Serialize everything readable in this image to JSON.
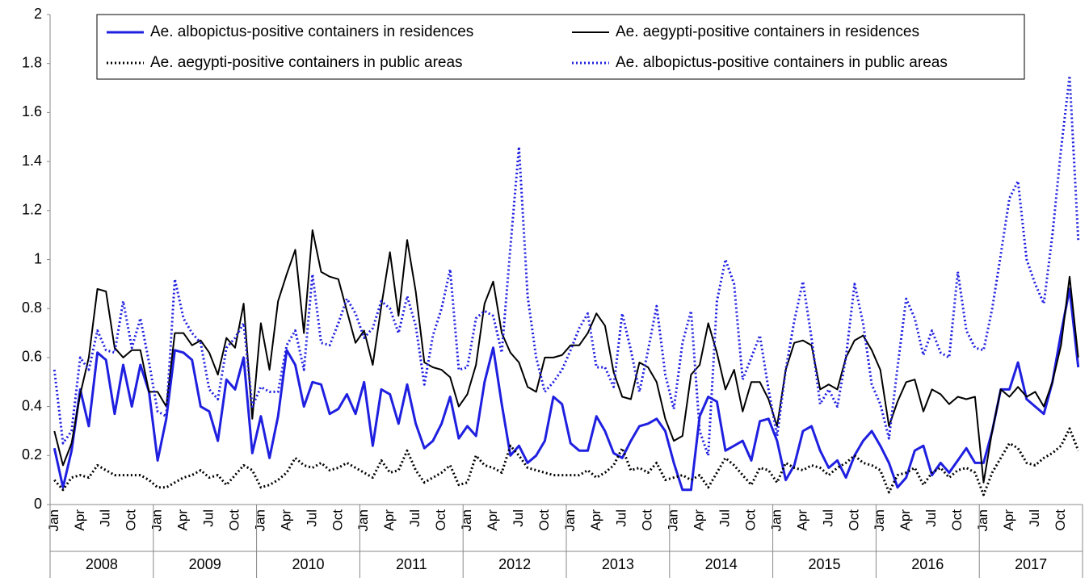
{
  "chart_data": {
    "type": "line",
    "categories": [
      "Jan",
      null,
      null,
      "Apr",
      null,
      null,
      "Jul",
      null,
      null,
      "Oct",
      null,
      null,
      "Jan",
      null,
      null,
      "Apr",
      null,
      null,
      "Jul",
      null,
      null,
      "Oct",
      null,
      null,
      "Jan",
      null,
      null,
      "Apr",
      null,
      null,
      "Jul",
      null,
      null,
      "Oct",
      null,
      null,
      "Jan",
      null,
      null,
      "Apr",
      null,
      null,
      "Jul",
      null,
      null,
      "Oct",
      null,
      null,
      "Jan",
      null,
      null,
      "Apr",
      null,
      null,
      "Jul",
      null,
      null,
      "Oct",
      null,
      null,
      "Jan",
      null,
      null,
      "Apr",
      null,
      null,
      "Jul",
      null,
      null,
      "Oct",
      null,
      null,
      "Jan",
      null,
      null,
      "Apr",
      null,
      null,
      "Jul",
      null,
      null,
      "Oct",
      null,
      null,
      "Jan",
      null,
      null,
      "Apr",
      null,
      null,
      "Jul",
      null,
      null,
      "Oct",
      null,
      null,
      "Jan",
      null,
      null,
      "Apr",
      null,
      null,
      "Jul",
      null,
      null,
      "Oct",
      null,
      null,
      "Jan",
      null,
      null,
      "Apr",
      null,
      null,
      "Jul",
      null,
      null,
      "Oct",
      null,
      null
    ],
    "years": [
      "2008",
      "2009",
      "2010",
      "2011",
      "2012",
      "2013",
      "2014",
      "2015",
      "2016",
      "2017"
    ],
    "ylim": [
      0,
      2
    ],
    "yticks": [
      0,
      0.2,
      0.4,
      0.6,
      0.8,
      1,
      1.2,
      1.4,
      1.6,
      1.8,
      2
    ],
    "legend": "top",
    "series": [
      {
        "name": "Ae. albopictus-positive containers in residences",
        "color": "#1f1fe0",
        "style": "solid",
        "values": [
          0.23,
          0.07,
          0.22,
          0.47,
          0.32,
          0.62,
          0.59,
          0.37,
          0.57,
          0.4,
          0.57,
          0.46,
          0.18,
          0.35,
          0.63,
          0.62,
          0.59,
          0.4,
          0.38,
          0.26,
          0.51,
          0.47,
          0.6,
          0.21,
          0.36,
          0.19,
          0.36,
          0.63,
          0.57,
          0.4,
          0.5,
          0.49,
          0.37,
          0.39,
          0.45,
          0.37,
          0.5,
          0.24,
          0.47,
          0.45,
          0.33,
          0.49,
          0.33,
          0.23,
          0.26,
          0.33,
          0.44,
          0.27,
          0.32,
          0.28,
          0.5,
          0.64,
          0.41,
          0.2,
          0.24,
          0.17,
          0.2,
          0.26,
          0.44,
          0.41,
          0.25,
          0.22,
          0.22,
          0.36,
          0.3,
          0.21,
          0.19,
          0.26,
          0.32,
          0.33,
          0.35,
          0.3,
          0.17,
          0.06,
          0.06,
          0.36,
          0.44,
          0.42,
          0.22,
          0.24,
          0.26,
          0.18,
          0.34,
          0.35,
          0.26,
          0.1,
          0.16,
          0.3,
          0.32,
          0.22,
          0.15,
          0.18,
          0.11,
          0.2,
          0.26,
          0.3,
          0.24,
          0.17,
          0.07,
          0.11,
          0.22,
          0.24,
          0.12,
          0.17,
          0.13,
          0.18,
          0.23,
          0.17,
          0.17,
          0.3,
          0.47,
          0.47,
          0.58,
          0.43,
          0.4,
          0.37,
          0.5,
          0.7,
          0.88,
          0.56
        ]
      },
      {
        "name": "Ae. aegypti-positive containers in residences",
        "color": "#000000",
        "style": "solid",
        "values": [
          0.3,
          0.16,
          0.25,
          0.45,
          0.6,
          0.88,
          0.87,
          0.64,
          0.6,
          0.63,
          0.63,
          0.46,
          0.46,
          0.4,
          0.7,
          0.7,
          0.65,
          0.67,
          0.62,
          0.53,
          0.68,
          0.64,
          0.82,
          0.35,
          0.74,
          0.55,
          0.83,
          0.94,
          1.04,
          0.7,
          1.12,
          0.95,
          0.93,
          0.92,
          0.79,
          0.66,
          0.71,
          0.57,
          0.81,
          1.03,
          0.77,
          1.08,
          0.87,
          0.58,
          0.56,
          0.55,
          0.52,
          0.4,
          0.45,
          0.57,
          0.82,
          0.91,
          0.7,
          0.62,
          0.58,
          0.48,
          0.46,
          0.6,
          0.6,
          0.61,
          0.65,
          0.65,
          0.7,
          0.78,
          0.73,
          0.54,
          0.44,
          0.43,
          0.58,
          0.56,
          0.5,
          0.35,
          0.26,
          0.28,
          0.53,
          0.57,
          0.74,
          0.62,
          0.47,
          0.55,
          0.38,
          0.5,
          0.5,
          0.43,
          0.32,
          0.55,
          0.66,
          0.67,
          0.65,
          0.47,
          0.49,
          0.47,
          0.6,
          0.67,
          0.69,
          0.63,
          0.55,
          0.32,
          0.42,
          0.5,
          0.51,
          0.38,
          0.47,
          0.45,
          0.41,
          0.44,
          0.43,
          0.44,
          0.09,
          0.3,
          0.47,
          0.44,
          0.48,
          0.44,
          0.46,
          0.4,
          0.5,
          0.65,
          0.93,
          0.6
        ]
      },
      {
        "name": "Ae. aegypti-positive containers in public areas",
        "color": "#000000",
        "style": "dotted",
        "values": [
          0.1,
          0.06,
          0.11,
          0.12,
          0.11,
          0.16,
          0.14,
          0.12,
          0.12,
          0.12,
          0.12,
          0.1,
          0.07,
          0.07,
          0.09,
          0.11,
          0.12,
          0.14,
          0.11,
          0.12,
          0.08,
          0.12,
          0.16,
          0.14,
          0.07,
          0.08,
          0.1,
          0.13,
          0.19,
          0.16,
          0.15,
          0.17,
          0.14,
          0.15,
          0.17,
          0.15,
          0.13,
          0.11,
          0.18,
          0.13,
          0.14,
          0.22,
          0.14,
          0.09,
          0.11,
          0.13,
          0.16,
          0.08,
          0.09,
          0.2,
          0.16,
          0.15,
          0.13,
          0.24,
          0.2,
          0.15,
          0.14,
          0.13,
          0.12,
          0.12,
          0.12,
          0.12,
          0.14,
          0.11,
          0.13,
          0.16,
          0.23,
          0.14,
          0.15,
          0.13,
          0.17,
          0.1,
          0.11,
          0.12,
          0.1,
          0.12,
          0.07,
          0.13,
          0.19,
          0.16,
          0.12,
          0.08,
          0.15,
          0.14,
          0.09,
          0.17,
          0.15,
          0.14,
          0.16,
          0.15,
          0.12,
          0.15,
          0.17,
          0.2,
          0.17,
          0.16,
          0.14,
          0.05,
          0.12,
          0.13,
          0.15,
          0.08,
          0.13,
          0.15,
          0.11,
          0.14,
          0.15,
          0.13,
          0.04,
          0.13,
          0.19,
          0.25,
          0.23,
          0.17,
          0.16,
          0.19,
          0.21,
          0.24,
          0.31,
          0.22
        ]
      },
      {
        "name": "Ae. albopictus-positive containers in public areas",
        "color": "#1f1fe0",
        "style": "dotted",
        "values": [
          0.55,
          0.25,
          0.3,
          0.6,
          0.55,
          0.71,
          0.63,
          0.62,
          0.83,
          0.64,
          0.76,
          0.58,
          0.38,
          0.36,
          0.92,
          0.76,
          0.7,
          0.66,
          0.47,
          0.43,
          0.64,
          0.68,
          0.74,
          0.4,
          0.48,
          0.46,
          0.46,
          0.65,
          0.71,
          0.55,
          0.94,
          0.66,
          0.65,
          0.74,
          0.84,
          0.78,
          0.68,
          0.72,
          0.83,
          0.8,
          0.7,
          0.85,
          0.73,
          0.49,
          0.69,
          0.8,
          0.96,
          0.55,
          0.56,
          0.76,
          0.79,
          0.77,
          0.62,
          1.05,
          1.46,
          0.85,
          0.6,
          0.46,
          0.5,
          0.55,
          0.63,
          0.72,
          0.78,
          0.56,
          0.56,
          0.48,
          0.78,
          0.63,
          0.46,
          0.63,
          0.81,
          0.53,
          0.39,
          0.66,
          0.79,
          0.3,
          0.2,
          0.83,
          1.0,
          0.9,
          0.51,
          0.6,
          0.69,
          0.47,
          0.28,
          0.55,
          0.75,
          0.91,
          0.68,
          0.41,
          0.47,
          0.4,
          0.6,
          0.9,
          0.74,
          0.49,
          0.41,
          0.27,
          0.56,
          0.84,
          0.76,
          0.61,
          0.71,
          0.62,
          0.6,
          0.95,
          0.71,
          0.64,
          0.63,
          0.8,
          1.02,
          1.25,
          1.32,
          1.0,
          0.9,
          0.82,
          1.1,
          1.45,
          1.75,
          1.08
        ]
      }
    ]
  }
}
